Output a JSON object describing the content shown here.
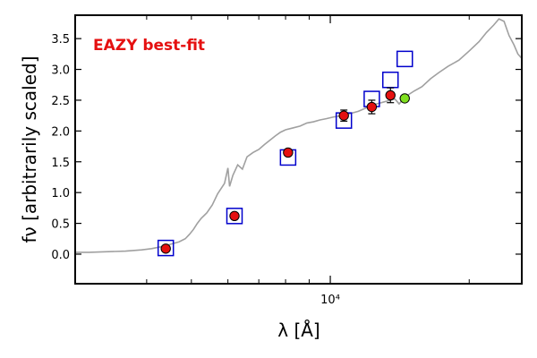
{
  "chart_data": {
    "type": "scatter",
    "annotation": "EAZY best-fit",
    "ylabel": "fν [arbitrarily scaled]",
    "xlabel": "λ [Å]",
    "x_scale": "log",
    "xlim": [
      2800,
      26000
    ],
    "ylim": [
      -0.48,
      3.88
    ],
    "x_major_tick_labels": [
      {
        "value": 10000,
        "label": "10⁴"
      }
    ],
    "x_minor_ticks": [
      4000,
      5000,
      6000,
      7000,
      8000,
      9000,
      20000
    ],
    "y_ticks": [
      "0.0",
      "0.5",
      "1.0",
      "1.5",
      "2.0",
      "2.5",
      "3.0",
      "3.5"
    ],
    "series": [
      {
        "type": "line",
        "color": "#a0a0a0",
        "points": [
          [
            2800,
            0.03
          ],
          [
            3000,
            0.03
          ],
          [
            3300,
            0.04
          ],
          [
            3600,
            0.05
          ],
          [
            3900,
            0.07
          ],
          [
            4100,
            0.09
          ],
          [
            4300,
            0.12
          ],
          [
            4500,
            0.16
          ],
          [
            4700,
            0.2
          ],
          [
            4850,
            0.25
          ],
          [
            4950,
            0.32
          ],
          [
            5050,
            0.4
          ],
          [
            5150,
            0.5
          ],
          [
            5250,
            0.58
          ],
          [
            5400,
            0.67
          ],
          [
            5550,
            0.8
          ],
          [
            5700,
            0.98
          ],
          [
            5900,
            1.15
          ],
          [
            6000,
            1.4
          ],
          [
            6050,
            1.1
          ],
          [
            6150,
            1.28
          ],
          [
            6300,
            1.45
          ],
          [
            6450,
            1.38
          ],
          [
            6600,
            1.58
          ],
          [
            6800,
            1.65
          ],
          [
            7000,
            1.7
          ],
          [
            7200,
            1.78
          ],
          [
            7400,
            1.85
          ],
          [
            7600,
            1.92
          ],
          [
            7800,
            1.98
          ],
          [
            8000,
            2.02
          ],
          [
            8300,
            2.05
          ],
          [
            8600,
            2.08
          ],
          [
            8900,
            2.13
          ],
          [
            9200,
            2.15
          ],
          [
            9500,
            2.18
          ],
          [
            9800,
            2.2
          ],
          [
            10200,
            2.23
          ],
          [
            10600,
            2.25
          ],
          [
            11000,
            2.28
          ],
          [
            11500,
            2.32
          ],
          [
            12000,
            2.38
          ],
          [
            12600,
            2.44
          ],
          [
            13200,
            2.48
          ],
          [
            13800,
            2.52
          ],
          [
            14100,
            2.44
          ],
          [
            14500,
            2.55
          ],
          [
            15200,
            2.65
          ],
          [
            15800,
            2.72
          ],
          [
            16500,
            2.85
          ],
          [
            17200,
            2.95
          ],
          [
            18000,
            3.05
          ],
          [
            19000,
            3.15
          ],
          [
            20000,
            3.3
          ],
          [
            21000,
            3.45
          ],
          [
            21800,
            3.6
          ],
          [
            22600,
            3.72
          ],
          [
            23200,
            3.82
          ],
          [
            23800,
            3.78
          ],
          [
            24400,
            3.55
          ],
          [
            25000,
            3.4
          ],
          [
            25500,
            3.25
          ],
          [
            26000,
            3.18
          ]
        ]
      },
      {
        "type": "model-squares",
        "color": "#0000cc",
        "points": [
          [
            4400,
            0.1
          ],
          [
            6200,
            0.62
          ],
          [
            8100,
            1.57
          ],
          [
            10700,
            2.17
          ],
          [
            12300,
            2.52
          ],
          [
            13500,
            2.83
          ],
          [
            14500,
            3.17
          ]
        ]
      },
      {
        "type": "observed",
        "color": "#e51010",
        "points": [
          {
            "x": 4400,
            "y": 0.09,
            "err": 0.04
          },
          {
            "x": 6200,
            "y": 0.62,
            "err": 0.04
          },
          {
            "x": 8100,
            "y": 1.65,
            "err": 0.04
          },
          {
            "x": 10700,
            "y": 2.25,
            "err": 0.09
          },
          {
            "x": 12300,
            "y": 2.39,
            "err": 0.11
          },
          {
            "x": 13500,
            "y": 2.58,
            "err": 0.12
          }
        ]
      },
      {
        "type": "observed-extra",
        "color": "#80e020",
        "points": [
          {
            "x": 14500,
            "y": 2.53
          }
        ]
      }
    ]
  }
}
